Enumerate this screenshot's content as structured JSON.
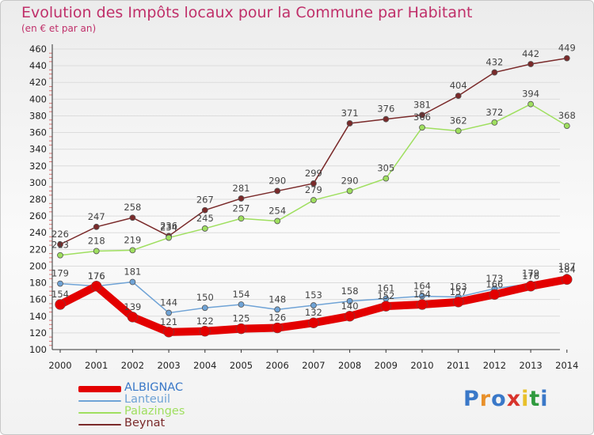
{
  "title": "Evolution des Impôts locaux pour la Commune par Habitant",
  "subtitle": "(en € et par an)",
  "logo": "Proxiti",
  "chart_data": {
    "type": "line",
    "x": [
      2000,
      2001,
      2002,
      2003,
      2004,
      2005,
      2006,
      2007,
      2008,
      2009,
      2010,
      2011,
      2012,
      2013,
      2014
    ],
    "ylim": [
      100,
      460
    ],
    "yticks": [
      100,
      120,
      140,
      160,
      180,
      200,
      220,
      240,
      260,
      280,
      300,
      320,
      340,
      360,
      380,
      400,
      420,
      440,
      460
    ],
    "grid": "horizontal",
    "legend": "bottom-left",
    "series": [
      {
        "name": "ALBIGNAC",
        "color": "#e30000",
        "values": [
          154,
          176,
          139,
          121,
          122,
          125,
          126,
          132,
          140,
          152,
          154,
          157,
          166,
          176,
          184
        ]
      },
      {
        "name": "Lanteuil",
        "color": "#6fa3d6",
        "values": [
          179,
          176,
          181,
          144,
          150,
          154,
          148,
          153,
          158,
          161,
          164,
          163,
          173,
          179,
          187
        ]
      },
      {
        "name": "Palazinges",
        "color": "#9fdf5f",
        "values": [
          213,
          218,
          219,
          234,
          245,
          257,
          254,
          279,
          290,
          305,
          366,
          362,
          372,
          394,
          368
        ]
      },
      {
        "name": "Beynat",
        "color": "#7a2a2a",
        "values": [
          226,
          247,
          258,
          236,
          267,
          281,
          290,
          299,
          371,
          376,
          381,
          404,
          432,
          442,
          449
        ]
      }
    ]
  }
}
